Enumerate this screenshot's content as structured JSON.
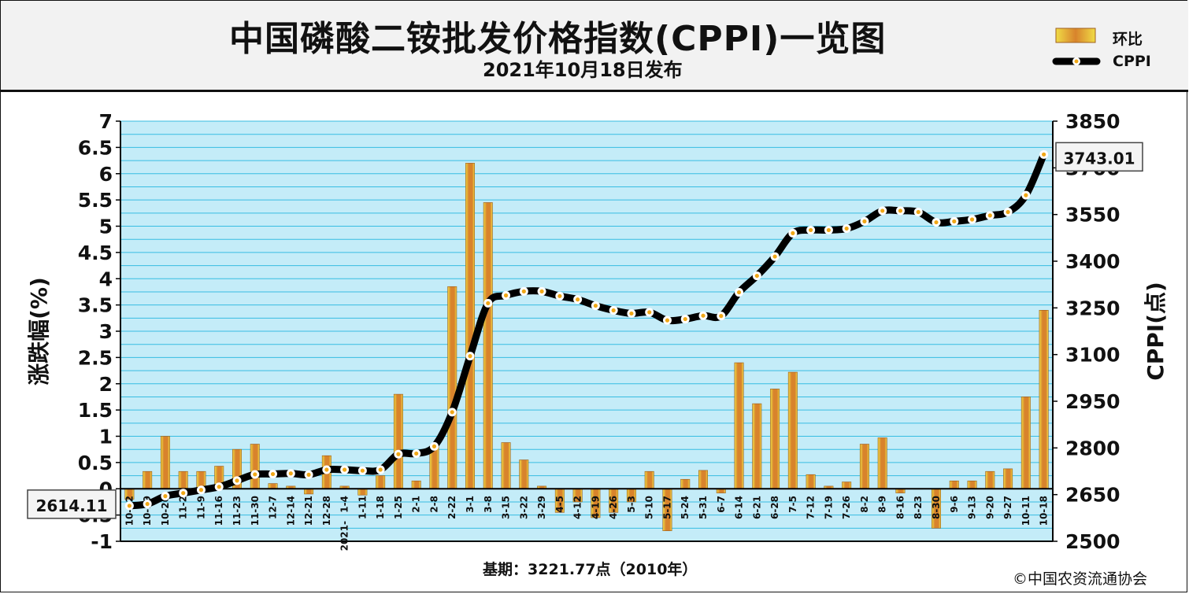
{
  "title": "中国磷酸二铵批发价格指数(CPPI)一览图",
  "subtitle": "2021年10月18日发布",
  "legend": {
    "bar_label": "环比",
    "line_label": "CPPI",
    "placement": "top-right"
  },
  "footer": {
    "baseline_note": "基期：3221.77点（2010年）",
    "copyright": "©中国农资流通协会"
  },
  "colors": {
    "plot_background": "#c4ecf8",
    "gridline": "#37bde2",
    "bar_fill": "#d8832c",
    "bar_highlight": "#f0dc46",
    "line": "#000000",
    "marker_fill": "#ffffff",
    "marker_dot": "#f0a818"
  },
  "chart_data": {
    "type": "bar+line",
    "categories": [
      "10-12",
      "10-19",
      "10-26",
      "11-2",
      "11-9",
      "11-16",
      "11-23",
      "11-30",
      "12-7",
      "12-14",
      "12-21",
      "12-28",
      "1-4",
      "1-11",
      "1-18",
      "1-25",
      "2-1",
      "2-8",
      "2-22",
      "3-1",
      "3-8",
      "3-15",
      "3-22",
      "3-29",
      "4-5",
      "4-12",
      "4-19",
      "4-26",
      "5-3",
      "5-10",
      "5-17",
      "5-24",
      "5-31",
      "6-7",
      "6-14",
      "6-21",
      "6-28",
      "7-5",
      "7-12",
      "7-19",
      "7-26",
      "8-2",
      "8-9",
      "8-16",
      "8-23",
      "8-30",
      "9-6",
      "9-13",
      "9-20",
      "9-27",
      "10-11",
      "10-18"
    ],
    "year_marker": {
      "category": "1-4",
      "text": "2021-"
    },
    "series": [
      {
        "name": "环比",
        "type": "bar",
        "axis": "left",
        "values": [
          -0.2,
          0.33,
          1.0,
          0.33,
          0.33,
          0.43,
          0.75,
          0.85,
          0.1,
          0.05,
          -0.1,
          0.63,
          0.05,
          -0.12,
          0.25,
          1.8,
          0.15,
          0.8,
          3.85,
          6.2,
          5.45,
          0.88,
          0.55,
          0.05,
          -0.45,
          -0.25,
          -0.55,
          -0.45,
          -0.25,
          0.33,
          -0.8,
          0.18,
          0.35,
          -0.08,
          2.4,
          1.62,
          1.9,
          2.22,
          0.27,
          0.05,
          0.13,
          0.85,
          0.97,
          -0.08,
          0.0,
          -0.75,
          0.15,
          0.15,
          0.33,
          0.38,
          1.75,
          3.4
        ]
      },
      {
        "name": "CPPI",
        "type": "line",
        "axis": "right",
        "values": [
          2614.11,
          2620,
          2645,
          2655,
          2665,
          2675,
          2695,
          2715,
          2716,
          2718,
          2714,
          2730,
          2730,
          2727,
          2730,
          2780,
          2782,
          2805,
          2915,
          3095,
          3265,
          3290,
          3303,
          3303,
          3288,
          3277,
          3257,
          3242,
          3232,
          3236,
          3210,
          3214,
          3225,
          3224,
          3300,
          3353,
          3415,
          3490,
          3500,
          3500,
          3505,
          3528,
          3562,
          3562,
          3558,
          3525,
          3528,
          3534,
          3547,
          3558,
          3612,
          3743.01
        ]
      }
    ],
    "y_left": {
      "label": "涨跌幅(%)",
      "range": [
        -1,
        7
      ],
      "ticks": [
        "7",
        "6.5",
        "6",
        "5.5",
        "5",
        "4.5",
        "4",
        "3.5",
        "3",
        "2.5",
        "2",
        "1.5",
        "1",
        "0.5",
        "0",
        "-0.5",
        "-1"
      ]
    },
    "y_right": {
      "label": "CPPI(点)",
      "range": [
        2500,
        3850
      ],
      "ticks": [
        "3850",
        "3700",
        "3550",
        "3400",
        "3250",
        "3100",
        "2950",
        "2800",
        "2650",
        "2500"
      ]
    },
    "callouts": [
      {
        "text": "2614.11",
        "series": "CPPI",
        "index": 0
      },
      {
        "text": "3743.01",
        "series": "CPPI",
        "index": 51
      }
    ],
    "grid": true
  }
}
